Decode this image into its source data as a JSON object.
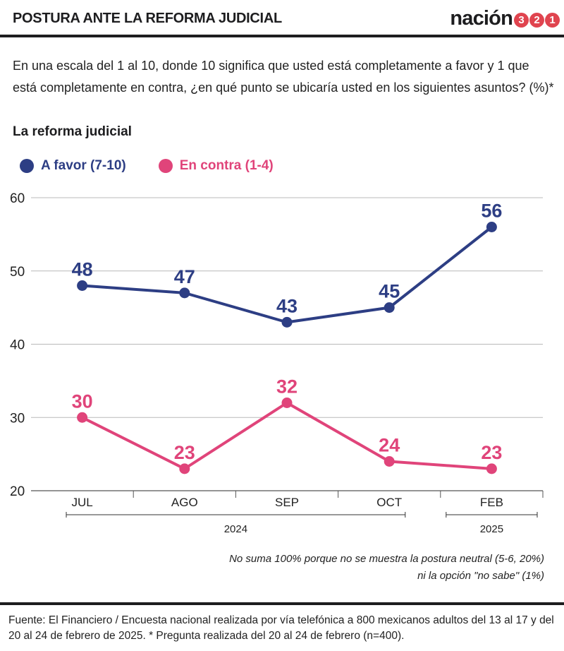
{
  "header": {
    "title": "POSTURA ANTE LA REFORMA JUDICIAL",
    "brand_word": "nación",
    "brand_digits": [
      "3",
      "2",
      "1"
    ],
    "brand_color": "#e0444f"
  },
  "question": "En una escala del 1 al 10, donde 10 significa que usted está completamente a favor y 1 que está completamente en contra, ¿en qué punto se ubicaría usted en los siguientes asuntos? (%)*",
  "subtitle": "La reforma judicial",
  "legend": [
    {
      "label": "A favor (7-10)",
      "color": "#2d3e84"
    },
    {
      "label": "En contra (1-4)",
      "color": "#e0447a"
    }
  ],
  "chart_data": {
    "type": "line",
    "categories": [
      "JUL",
      "AGO",
      "SEP",
      "OCT",
      "FEB"
    ],
    "year_groups": [
      {
        "label": "2024",
        "from": 0,
        "to": 3
      },
      {
        "label": "2025",
        "from": 4,
        "to": 4
      }
    ],
    "series": [
      {
        "name": "A favor (7-10)",
        "color": "#2d3e84",
        "values": [
          48,
          47,
          43,
          45,
          56
        ]
      },
      {
        "name": "En contra (1-4)",
        "color": "#e0447a",
        "values": [
          30,
          23,
          32,
          24,
          23
        ]
      }
    ],
    "ylim": [
      20,
      60
    ],
    "yticks": [
      20,
      30,
      40,
      50,
      60
    ],
    "grid": true,
    "legend_position": "top-left",
    "data_labels": true
  },
  "note": "No suma 100% porque no se muestra la postura neutral (5-6, 20%) ni la opción \"no sabe\" (1%)",
  "source": "Fuente: El Financiero / Encuesta nacional realizada por vía telefónica a 800 mexicanos adultos del 13 al 17 y del 20 al 24 de febrero de 2025. * Pregunta realizada del 20 al 24 de febrero (n=400)."
}
